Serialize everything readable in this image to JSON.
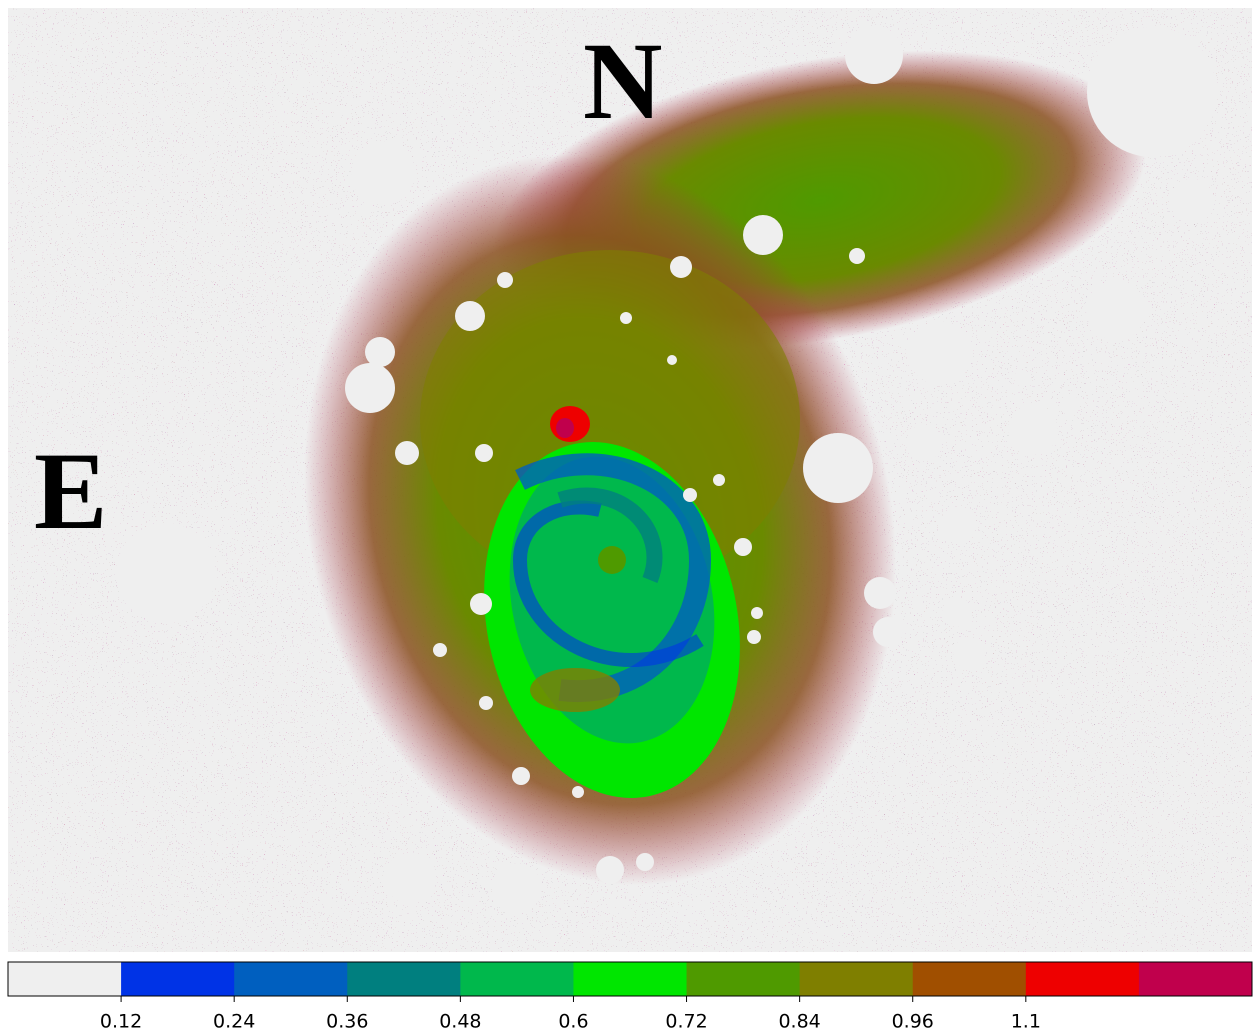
{
  "labels": {
    "north": "N",
    "east": "E"
  },
  "chart_data": {
    "type": "colorbar",
    "colors": [
      "#efefef",
      "#0033e6",
      "#005fbf",
      "#007f7f",
      "#00b84c",
      "#00e600",
      "#4f9a00",
      "#7f7f00",
      "#a04f00",
      "#ee0000",
      "#c0004c"
    ],
    "xlim": [
      0,
      1.32
    ],
    "xticks": [
      0.12,
      0.24,
      0.36,
      0.48,
      0.6,
      0.72,
      0.84,
      0.96,
      {
        "value": 1.08,
        "label": "1.1"
      }
    ]
  }
}
